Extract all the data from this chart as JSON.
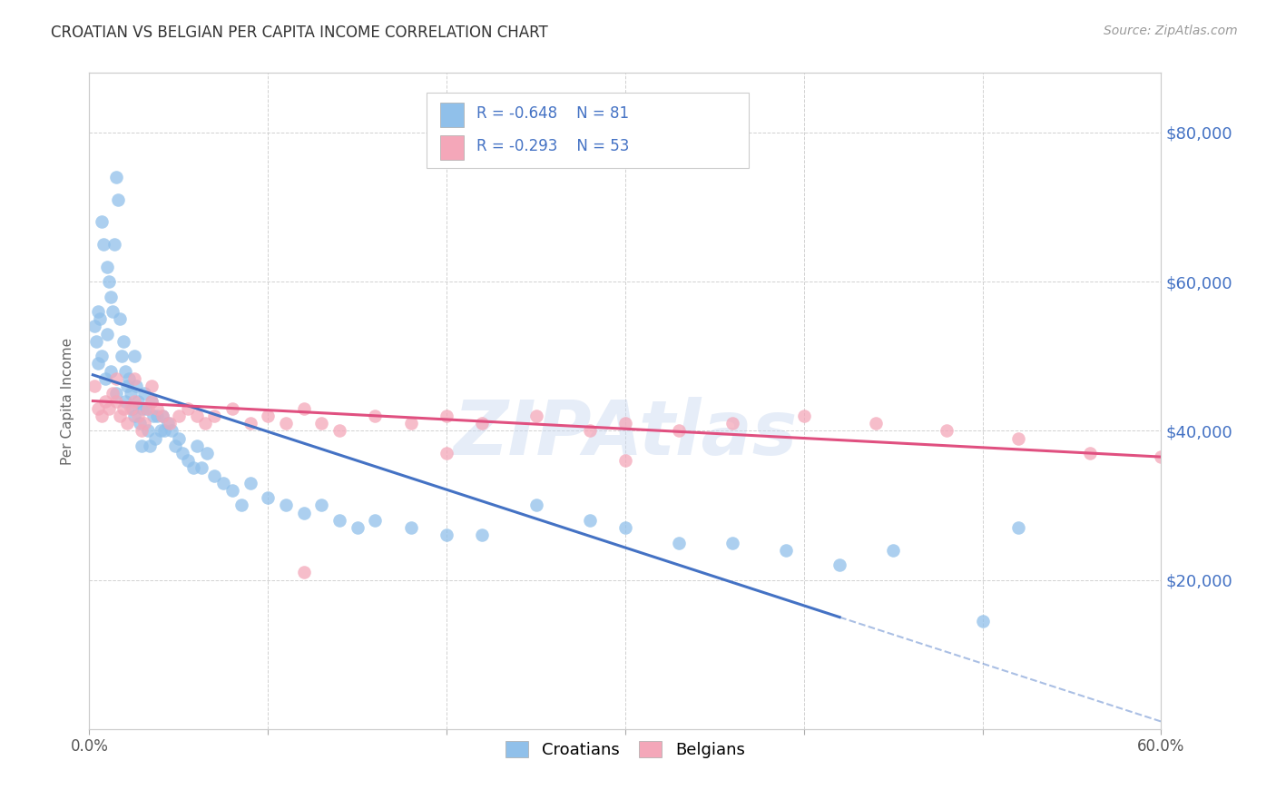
{
  "title": "CROATIAN VS BELGIAN PER CAPITA INCOME CORRELATION CHART",
  "source": "Source: ZipAtlas.com",
  "ylabel": "Per Capita Income",
  "xlim": [
    0.0,
    0.6
  ],
  "ylim": [
    0,
    88000
  ],
  "yticks": [
    0,
    20000,
    40000,
    60000,
    80000
  ],
  "xticks": [
    0.0,
    0.1,
    0.2,
    0.3,
    0.4,
    0.5,
    0.6
  ],
  "xtick_labels": [
    "0.0%",
    "",
    "",
    "",
    "",
    "",
    "60.0%"
  ],
  "croatians_color": "#90C0EA",
  "belgians_color": "#F4A7B9",
  "croatians_line_color": "#4472C4",
  "belgians_line_color": "#E05080",
  "legend_r_croatians": "R = -0.648",
  "legend_n_croatians": "N = 81",
  "legend_r_belgians": "R = -0.293",
  "legend_n_belgians": "N = 53",
  "legend_label_croatians": "Croatians",
  "legend_label_belgians": "Belgians",
  "watermark": "ZIPAtlas",
  "background_color": "#FFFFFF",
  "grid_color": "#CCCCCC",
  "right_ytick_color": "#4472C4",
  "cro_line_x0": 0.002,
  "cro_line_x1": 0.42,
  "cro_line_y0": 47500,
  "cro_line_y1": 15000,
  "bel_line_x0": 0.002,
  "bel_line_x1": 0.6,
  "bel_line_y0": 44000,
  "bel_line_y1": 36500,
  "croatians_x": [
    0.003,
    0.004,
    0.005,
    0.005,
    0.006,
    0.007,
    0.007,
    0.008,
    0.009,
    0.01,
    0.01,
    0.011,
    0.012,
    0.012,
    0.013,
    0.014,
    0.015,
    0.015,
    0.016,
    0.017,
    0.018,
    0.019,
    0.02,
    0.02,
    0.021,
    0.022,
    0.023,
    0.024,
    0.025,
    0.025,
    0.026,
    0.027,
    0.028,
    0.029,
    0.03,
    0.031,
    0.032,
    0.033,
    0.034,
    0.035,
    0.036,
    0.037,
    0.038,
    0.04,
    0.041,
    0.042,
    0.044,
    0.046,
    0.048,
    0.05,
    0.052,
    0.055,
    0.058,
    0.06,
    0.063,
    0.066,
    0.07,
    0.075,
    0.08,
    0.085,
    0.09,
    0.1,
    0.11,
    0.12,
    0.13,
    0.14,
    0.15,
    0.16,
    0.18,
    0.2,
    0.22,
    0.25,
    0.28,
    0.3,
    0.33,
    0.36,
    0.39,
    0.42,
    0.45,
    0.5,
    0.52
  ],
  "croatians_y": [
    54000,
    52000,
    56000,
    49000,
    55000,
    68000,
    50000,
    65000,
    47000,
    62000,
    53000,
    60000,
    58000,
    48000,
    56000,
    65000,
    74000,
    45000,
    71000,
    55000,
    50000,
    52000,
    48000,
    44000,
    46000,
    47000,
    45000,
    43000,
    50000,
    42000,
    46000,
    44000,
    41000,
    38000,
    43000,
    45000,
    43000,
    40000,
    38000,
    44000,
    42000,
    39000,
    42000,
    40000,
    42000,
    40000,
    41000,
    40000,
    38000,
    39000,
    37000,
    36000,
    35000,
    38000,
    35000,
    37000,
    34000,
    33000,
    32000,
    30000,
    33000,
    31000,
    30000,
    29000,
    30000,
    28000,
    27000,
    28000,
    27000,
    26000,
    26000,
    30000,
    28000,
    27000,
    25000,
    25000,
    24000,
    22000,
    24000,
    14500,
    27000
  ],
  "belgians_x": [
    0.003,
    0.005,
    0.007,
    0.009,
    0.011,
    0.013,
    0.015,
    0.017,
    0.019,
    0.021,
    0.023,
    0.025,
    0.027,
    0.029,
    0.031,
    0.033,
    0.035,
    0.038,
    0.041,
    0.045,
    0.05,
    0.055,
    0.06,
    0.065,
    0.07,
    0.08,
    0.09,
    0.1,
    0.11,
    0.12,
    0.13,
    0.14,
    0.16,
    0.18,
    0.2,
    0.22,
    0.25,
    0.28,
    0.3,
    0.33,
    0.36,
    0.4,
    0.44,
    0.48,
    0.52,
    0.56,
    0.6,
    0.015,
    0.025,
    0.035,
    0.12,
    0.2,
    0.3
  ],
  "belgians_y": [
    46000,
    43000,
    42000,
    44000,
    43000,
    45000,
    44000,
    42000,
    43000,
    41000,
    43000,
    44000,
    42000,
    40000,
    41000,
    43000,
    44000,
    43000,
    42000,
    41000,
    42000,
    43000,
    42000,
    41000,
    42000,
    43000,
    41000,
    42000,
    41000,
    43000,
    41000,
    40000,
    42000,
    41000,
    42000,
    41000,
    42000,
    40000,
    41000,
    40000,
    41000,
    42000,
    41000,
    40000,
    39000,
    37000,
    36500,
    47000,
    47000,
    46000,
    21000,
    37000,
    36000
  ]
}
